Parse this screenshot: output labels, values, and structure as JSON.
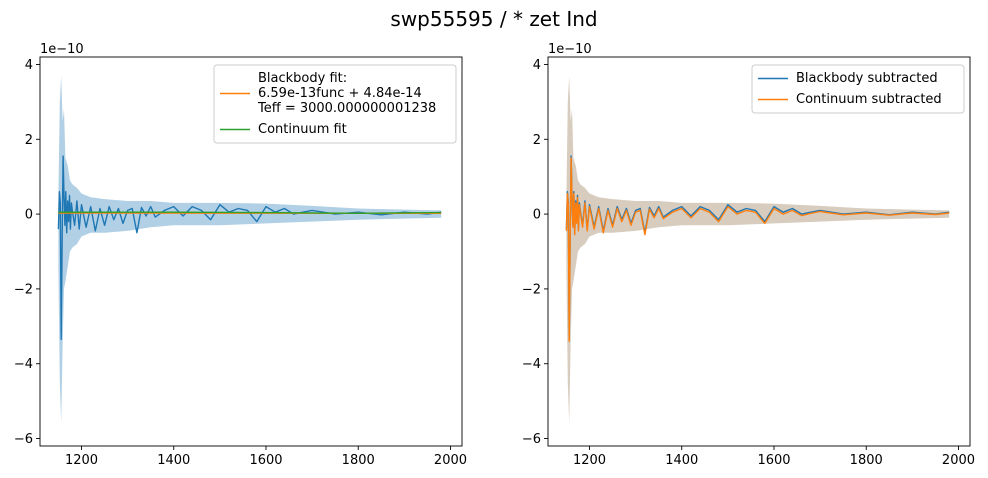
{
  "figure": {
    "title": "swp55595 / * zet Ind"
  },
  "chart_data": [
    {
      "type": "line",
      "title": "",
      "xlabel": "",
      "ylabel": "",
      "y_offset_label": "1e−10",
      "xlim": [
        1110,
        2025
      ],
      "ylim": [
        -6.2,
        4.2
      ],
      "xticks": [
        1200,
        1400,
        1600,
        1800,
        2000
      ],
      "yticks": [
        -6,
        -4,
        -2,
        0,
        2,
        4
      ],
      "xtick_labels": [
        "1200",
        "1400",
        "1600",
        "1800",
        "2000"
      ],
      "ytick_labels": [
        "−6",
        "−4",
        "−2",
        "0",
        "2",
        "4"
      ],
      "grid": false,
      "legend_position": "top-right",
      "colors": {
        "flux": "#1f77b4",
        "blackbody": "#ff7f0e",
        "continuum": "#2ca02c",
        "band": "#1f77b4"
      },
      "series": [
        {
          "role": "flux",
          "color": "#1f77b4",
          "x": [
            1150,
            1152,
            1154,
            1156,
            1158,
            1160,
            1162,
            1164,
            1166,
            1168,
            1170,
            1172,
            1174,
            1176,
            1178,
            1180,
            1185,
            1190,
            1195,
            1200,
            1210,
            1220,
            1230,
            1240,
            1250,
            1260,
            1270,
            1280,
            1290,
            1300,
            1310,
            1320,
            1330,
            1340,
            1350,
            1360,
            1380,
            1400,
            1420,
            1440,
            1460,
            1480,
            1500,
            1520,
            1540,
            1560,
            1580,
            1600,
            1620,
            1640,
            1660,
            1680,
            1700,
            1750,
            1800,
            1850,
            1900,
            1950,
            1980
          ],
          "values": [
            -0.4,
            0.6,
            0.3,
            -3.35,
            -0.8,
            1.55,
            0.5,
            -0.3,
            0.6,
            -0.5,
            0.35,
            -0.2,
            0.5,
            -0.4,
            0.3,
            0.1,
            -0.3,
            0.35,
            -0.4,
            0.25,
            -0.35,
            0.2,
            -0.45,
            0.15,
            -0.3,
            0.2,
            -0.15,
            0.15,
            -0.25,
            0.1,
            0.15,
            -0.5,
            0.18,
            -0.05,
            0.2,
            -0.08,
            0.1,
            0.2,
            -0.05,
            0.2,
            0.1,
            -0.15,
            0.25,
            0.05,
            0.15,
            0.1,
            -0.2,
            0.2,
            0.05,
            0.15,
            0.0,
            0.05,
            0.1,
            0.0,
            0.05,
            -0.02,
            0.05,
            0.0,
            0.05
          ]
        },
        {
          "name": "Blackbody fit:\n6.59e-13func + 4.84e-14\nTeff = 3000.000000001238",
          "color": "#ff7f0e",
          "x": [
            1150,
            1980
          ],
          "values": [
            0.03,
            0.02
          ]
        },
        {
          "name": "Continuum fit",
          "color": "#2ca02c",
          "x": [
            1150,
            1400,
            1600,
            1800,
            1980
          ],
          "values": [
            0.05,
            0.05,
            0.04,
            0.02,
            0.04
          ]
        }
      ],
      "uncertainty_band": {
        "x": [
          1150,
          1153,
          1156,
          1159,
          1162,
          1165,
          1170,
          1175,
          1180,
          1190,
          1200,
          1220,
          1250,
          1300,
          1350,
          1400,
          1500,
          1600,
          1700,
          1800,
          1900,
          1980
        ],
        "upper": [
          0.5,
          3.0,
          3.7,
          2.5,
          2.8,
          1.5,
          1.3,
          0.9,
          0.8,
          0.7,
          0.55,
          0.45,
          0.4,
          0.35,
          0.35,
          0.3,
          0.3,
          0.28,
          0.22,
          0.15,
          0.12,
          0.1
        ],
        "lower": [
          -1.5,
          -4.5,
          -5.6,
          -3.5,
          -2.0,
          -1.8,
          -1.4,
          -1.0,
          -0.9,
          -0.8,
          -0.6,
          -0.5,
          -0.5,
          -0.45,
          -0.35,
          -0.3,
          -0.3,
          -0.25,
          -0.2,
          -0.15,
          -0.12,
          -0.1
        ]
      }
    },
    {
      "type": "line",
      "title": "",
      "xlabel": "",
      "ylabel": "",
      "y_offset_label": "1e−10",
      "xlim": [
        1110,
        2025
      ],
      "ylim": [
        -6.2,
        4.2
      ],
      "xticks": [
        1200,
        1400,
        1600,
        1800,
        2000
      ],
      "yticks": [
        -6,
        -4,
        -2,
        0,
        2,
        4
      ],
      "xtick_labels": [
        "1200",
        "1400",
        "1600",
        "1800",
        "2000"
      ],
      "ytick_labels": [
        "−6",
        "−4",
        "−2",
        "0",
        "2",
        "4"
      ],
      "grid": false,
      "legend_position": "top-right",
      "colors": {
        "blackbody_subtracted": "#1f77b4",
        "continuum_subtracted": "#ff7f0e",
        "band": "#8c6d46"
      },
      "series": [
        {
          "name": "Blackbody subtracted",
          "color": "#1f77b4",
          "x": [
            1150,
            1152,
            1154,
            1156,
            1158,
            1160,
            1162,
            1164,
            1166,
            1168,
            1170,
            1172,
            1174,
            1176,
            1178,
            1180,
            1185,
            1190,
            1195,
            1200,
            1210,
            1220,
            1230,
            1240,
            1250,
            1260,
            1270,
            1280,
            1290,
            1300,
            1310,
            1320,
            1330,
            1340,
            1350,
            1360,
            1380,
            1400,
            1420,
            1440,
            1460,
            1480,
            1500,
            1520,
            1540,
            1560,
            1580,
            1600,
            1620,
            1640,
            1660,
            1680,
            1700,
            1750,
            1800,
            1850,
            1900,
            1950,
            1980
          ],
          "values": [
            -0.4,
            0.6,
            0.3,
            -3.35,
            -0.8,
            1.55,
            0.5,
            -0.3,
            0.6,
            -0.5,
            0.35,
            -0.2,
            0.5,
            -0.4,
            0.3,
            0.1,
            -0.3,
            0.35,
            -0.4,
            0.25,
            -0.35,
            0.2,
            -0.45,
            0.15,
            -0.3,
            0.2,
            -0.15,
            0.15,
            -0.25,
            0.1,
            0.15,
            -0.5,
            0.18,
            -0.05,
            0.2,
            -0.08,
            0.1,
            0.2,
            -0.05,
            0.2,
            0.1,
            -0.15,
            0.25,
            0.05,
            0.15,
            0.1,
            -0.2,
            0.2,
            0.05,
            0.15,
            0.0,
            0.05,
            0.1,
            0.0,
            0.05,
            -0.02,
            0.05,
            0.0,
            0.05
          ]
        },
        {
          "name": "Continuum subtracted",
          "color": "#ff7f0e",
          "x": [
            1150,
            1152,
            1154,
            1156,
            1158,
            1160,
            1162,
            1164,
            1166,
            1168,
            1170,
            1172,
            1174,
            1176,
            1178,
            1180,
            1185,
            1190,
            1195,
            1200,
            1210,
            1220,
            1230,
            1240,
            1250,
            1260,
            1270,
            1280,
            1290,
            1300,
            1310,
            1320,
            1330,
            1340,
            1350,
            1360,
            1380,
            1400,
            1420,
            1440,
            1460,
            1480,
            1500,
            1520,
            1540,
            1560,
            1580,
            1600,
            1620,
            1640,
            1660,
            1680,
            1700,
            1750,
            1800,
            1850,
            1900,
            1950,
            1980
          ],
          "values": [
            -0.45,
            0.55,
            0.25,
            -3.4,
            -0.85,
            1.5,
            0.45,
            -0.35,
            0.55,
            -0.55,
            0.3,
            -0.25,
            0.45,
            -0.45,
            0.25,
            0.05,
            -0.35,
            0.3,
            -0.45,
            0.2,
            -0.4,
            0.15,
            -0.5,
            0.1,
            -0.35,
            0.15,
            -0.2,
            0.1,
            -0.3,
            0.05,
            0.1,
            -0.55,
            0.13,
            -0.1,
            0.15,
            -0.12,
            0.05,
            0.15,
            -0.1,
            0.15,
            0.05,
            -0.2,
            0.2,
            0.0,
            0.1,
            0.05,
            -0.25,
            0.15,
            0.0,
            0.1,
            -0.04,
            0.02,
            0.07,
            -0.02,
            0.03,
            -0.03,
            0.03,
            -0.01,
            0.03
          ]
        }
      ],
      "uncertainty_band": {
        "x": [
          1150,
          1153,
          1156,
          1159,
          1162,
          1165,
          1170,
          1175,
          1180,
          1190,
          1200,
          1220,
          1250,
          1300,
          1350,
          1400,
          1500,
          1600,
          1700,
          1800,
          1900,
          1980
        ],
        "upper": [
          0.5,
          3.0,
          3.7,
          2.5,
          2.8,
          1.5,
          1.3,
          0.9,
          0.8,
          0.7,
          0.55,
          0.45,
          0.4,
          0.35,
          0.35,
          0.3,
          0.3,
          0.28,
          0.22,
          0.15,
          0.12,
          0.1
        ],
        "lower": [
          -1.5,
          -4.5,
          -5.6,
          -3.5,
          -2.0,
          -1.8,
          -1.4,
          -1.0,
          -0.9,
          -0.8,
          -0.6,
          -0.5,
          -0.5,
          -0.45,
          -0.35,
          -0.3,
          -0.3,
          -0.25,
          -0.2,
          -0.15,
          -0.12,
          -0.1
        ]
      }
    }
  ]
}
